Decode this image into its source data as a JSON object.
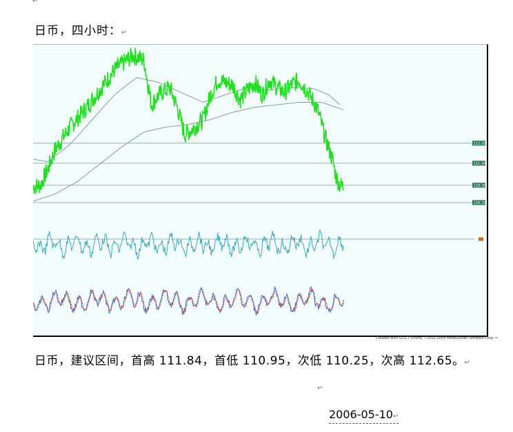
{
  "document": {
    "heading": "日币，四小时：",
    "summary": "日币，建议区间，首高 111.84，首低 110.95，次低 110.25，次高 112.65。",
    "date": "2006-05-10",
    "paragraph_mark": "↵"
  },
  "chart_data": {
    "type": "line",
    "credit": "Created with GCICT Online, ? 2002-2004 MetaQuotes Software Corp.",
    "colors": {
      "background": "#f2fcfc",
      "price": "#22dd22",
      "moving_average": "#7fa0a0",
      "level_line": "#9ab0b0",
      "level_label_bg": "#2f7a55",
      "oscillator": "#3aa7b5",
      "stoch_main": "#3a6fc9",
      "stoch_signal": "#d43a3a"
    },
    "price_keypoints": [
      [
        0,
        110.9
      ],
      [
        0.02,
        110.95
      ],
      [
        0.04,
        111.6
      ],
      [
        0.06,
        112.4
      ],
      [
        0.1,
        113.3
      ],
      [
        0.14,
        114.0
      ],
      [
        0.18,
        114.8
      ],
      [
        0.22,
        115.6
      ],
      [
        0.27,
        116.2
      ],
      [
        0.3,
        116.0
      ],
      [
        0.32,
        114.2
      ],
      [
        0.34,
        114.6
      ],
      [
        0.37,
        114.9
      ],
      [
        0.39,
        114.1
      ],
      [
        0.41,
        113.0
      ],
      [
        0.43,
        113.2
      ],
      [
        0.46,
        113.6
      ],
      [
        0.48,
        114.6
      ],
      [
        0.5,
        115.2
      ],
      [
        0.52,
        115.1
      ],
      [
        0.54,
        115.0
      ],
      [
        0.56,
        114.4
      ],
      [
        0.58,
        114.8
      ],
      [
        0.6,
        115.1
      ],
      [
        0.62,
        114.6
      ],
      [
        0.64,
        115.2
      ],
      [
        0.66,
        114.9
      ],
      [
        0.68,
        114.7
      ],
      [
        0.7,
        115.0
      ],
      [
        0.72,
        115.2
      ],
      [
        0.74,
        114.8
      ],
      [
        0.76,
        114.3
      ],
      [
        0.77,
        114.0
      ],
      [
        0.79,
        112.9
      ],
      [
        0.81,
        112.0
      ],
      [
        0.82,
        111.3
      ],
      [
        0.83,
        110.95
      ],
      [
        0.84,
        110.9
      ]
    ],
    "moving_averages": [
      [
        [
          0,
          112.0
        ],
        [
          0.04,
          111.9
        ],
        [
          0.1,
          112.6
        ],
        [
          0.16,
          113.6
        ],
        [
          0.22,
          114.6
        ],
        [
          0.28,
          115.3
        ],
        [
          0.34,
          115.1
        ],
        [
          0.4,
          114.7
        ],
        [
          0.46,
          114.3
        ],
        [
          0.52,
          114.6
        ],
        [
          0.58,
          114.9
        ],
        [
          0.64,
          114.8
        ],
        [
          0.7,
          114.9
        ],
        [
          0.76,
          114.85
        ],
        [
          0.8,
          114.6
        ],
        [
          0.83,
          114.2
        ]
      ],
      [
        [
          0,
          110.3
        ],
        [
          0.06,
          110.6
        ],
        [
          0.12,
          111.1
        ],
        [
          0.18,
          111.8
        ],
        [
          0.24,
          112.5
        ],
        [
          0.3,
          113.1
        ],
        [
          0.36,
          113.3
        ],
        [
          0.42,
          113.4
        ],
        [
          0.48,
          113.6
        ],
        [
          0.54,
          113.9
        ],
        [
          0.6,
          114.1
        ],
        [
          0.66,
          114.2
        ],
        [
          0.72,
          114.3
        ],
        [
          0.78,
          114.3
        ],
        [
          0.82,
          114.1
        ],
        [
          0.84,
          114.0
        ]
      ]
    ],
    "levels": [
      {
        "value": 112.65,
        "label": "112.65"
      },
      {
        "value": 111.84,
        "label": "111.84"
      },
      {
        "value": 110.95,
        "label": "110.95"
      },
      {
        "value": 110.25,
        "label": "110.25"
      }
    ],
    "ylim": [
      110.0,
      116.4
    ]
  }
}
